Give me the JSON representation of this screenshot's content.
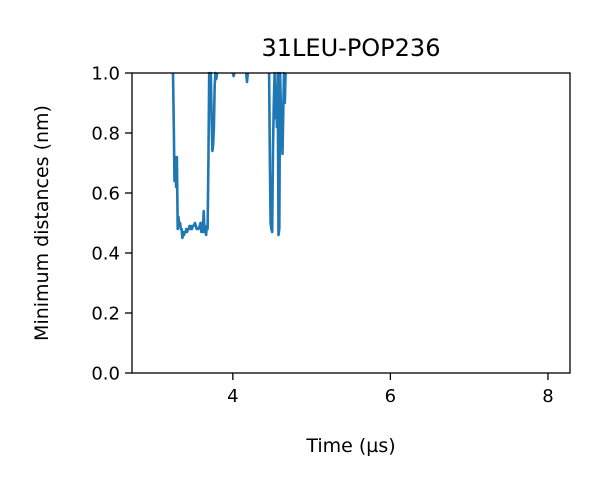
{
  "chart_data": {
    "type": "line",
    "title": "31LEU-POP236",
    "xlabel": "Time (µs)",
    "ylabel": "Minimum distances (nm)",
    "xlim": [
      2.72,
      8.28
    ],
    "ylim": [
      0.0,
      1.0
    ],
    "xticks": [
      4,
      6,
      8
    ],
    "yticks": [
      0.0,
      0.2,
      0.4,
      0.6,
      0.8,
      1.0
    ],
    "xtick_labels": [
      "4",
      "6",
      "8"
    ],
    "ytick_labels": [
      "0.0",
      "0.2",
      "0.4",
      "0.6",
      "0.8",
      "1.0"
    ],
    "grid": false,
    "line_color": "#1f77b4",
    "series": [
      {
        "x": [
          3.24,
          3.25,
          3.26,
          3.27,
          3.28,
          3.29,
          3.3,
          3.31,
          3.32,
          3.33,
          3.34,
          3.35,
          3.36,
          3.37,
          3.38,
          3.39,
          3.4,
          3.41,
          3.42,
          3.43,
          3.44,
          3.45,
          3.46,
          3.47,
          3.48,
          3.49,
          3.5,
          3.52,
          3.54,
          3.56,
          3.58,
          3.59,
          3.6,
          3.61,
          3.62,
          3.63,
          3.64,
          3.65,
          3.66,
          3.67,
          3.68,
          3.69,
          3.7,
          3.71,
          3.72,
          3.73,
          3.74,
          3.75,
          3.76,
          3.77,
          3.78,
          3.79,
          3.8
        ],
        "y": [
          1.0,
          0.82,
          0.64,
          0.72,
          0.62,
          0.72,
          0.48,
          0.52,
          0.49,
          0.5,
          0.48,
          0.48,
          0.45,
          0.47,
          0.46,
          0.47,
          0.47,
          0.48,
          0.47,
          0.48,
          0.48,
          0.49,
          0.48,
          0.49,
          0.48,
          0.49,
          0.49,
          0.5,
          0.48,
          0.48,
          0.49,
          0.5,
          0.47,
          0.5,
          0.47,
          0.54,
          0.47,
          0.48,
          0.46,
          0.49,
          0.48,
          0.7,
          1.0,
          0.9,
          1.0,
          0.85,
          0.74,
          0.76,
          0.82,
          0.96,
          1.0,
          0.98,
          1.0
        ]
      },
      {
        "x": [
          4.0,
          4.01,
          4.02
        ],
        "y": [
          1.0,
          0.99,
          1.0
        ]
      },
      {
        "x": [
          4.17,
          4.18,
          4.19
        ],
        "y": [
          1.0,
          0.97,
          1.0
        ]
      },
      {
        "x": [
          4.46,
          4.47,
          4.48,
          4.49,
          4.5,
          4.51,
          4.52,
          4.53,
          4.54,
          4.55,
          4.56,
          4.57,
          4.58,
          4.59,
          4.6,
          4.61,
          4.62,
          4.63,
          4.64,
          4.65,
          4.66,
          4.67
        ],
        "y": [
          1.0,
          0.7,
          0.5,
          0.48,
          0.47,
          0.75,
          0.9,
          1.0,
          0.85,
          0.95,
          0.82,
          1.0,
          0.46,
          0.48,
          1.0,
          0.88,
          0.8,
          0.73,
          0.88,
          1.0,
          0.9,
          1.0
        ]
      }
    ]
  }
}
